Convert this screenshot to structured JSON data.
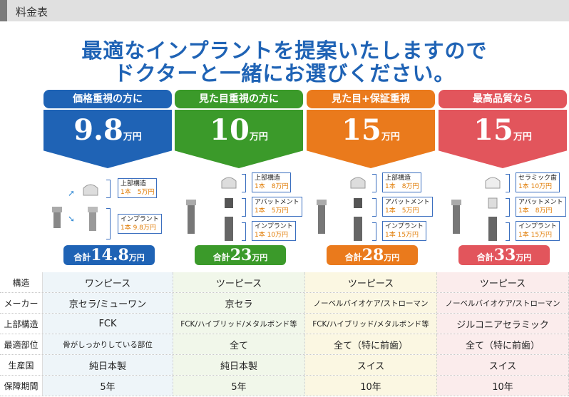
{
  "header": {
    "title": "料金表"
  },
  "headline": {
    "line1": "最適なインプラントを提案いたしますので",
    "line2": "ドクターと一緒にお選びください。"
  },
  "plans": [
    {
      "tag": "価格重視の方に",
      "price": "9.8",
      "unit": "万円",
      "total_label": "合計",
      "total": "14.8",
      "total_unit": "万円",
      "color": "#1f63b5",
      "parts": [
        {
          "name": "上部構造",
          "price": "1本　5万円"
        },
        {
          "name": "インプラント",
          "price": "1本 9.8万円"
        }
      ]
    },
    {
      "tag": "見た目重視の方に",
      "price": "10",
      "unit": "万円",
      "total_label": "合計",
      "total": "23",
      "total_unit": "万円",
      "color": "#3b9a2a",
      "parts": [
        {
          "name": "上部構造",
          "price": "1本　8万円"
        },
        {
          "name": "アバットメント",
          "price": "1本　5万円"
        },
        {
          "name": "インプラント",
          "price": "1本 10万円"
        }
      ]
    },
    {
      "tag": "見た目+保証重視",
      "price": "15",
      "unit": "万円",
      "total_label": "合計",
      "total": "28",
      "total_unit": "万円",
      "color": "#ea7a1c",
      "parts": [
        {
          "name": "上部構造",
          "price": "1本　8万円"
        },
        {
          "name": "アバットメント",
          "price": "1本　5万円"
        },
        {
          "name": "インプラント",
          "price": "1本 15万円"
        }
      ]
    },
    {
      "tag": "最高品質なら",
      "price": "15",
      "unit": "万円",
      "total_label": "合計",
      "total": "33",
      "total_unit": "万円",
      "color": "#e2555c",
      "parts": [
        {
          "name": "セラミック歯",
          "price": "1本 10万円"
        },
        {
          "name": "アバットメント",
          "price": "1本　8万円"
        },
        {
          "name": "インプラント",
          "price": "1本 15万円"
        }
      ]
    }
  ],
  "table": {
    "rows": [
      {
        "key": "構造",
        "values": [
          "ワンピース",
          "ツーピース",
          "ツーピース",
          "ツーピース"
        ]
      },
      {
        "key": "メーカー",
        "values": [
          "京セラ/ミューワン",
          "京セラ",
          "ノーベルバイオケア/ストローマン",
          "ノーベルバイオケア/ストローマン"
        ]
      },
      {
        "key": "上部構造",
        "values": [
          "FCK",
          "FCK/ハイブリッド/メタルボンド等",
          "FCK/ハイブリッド/メタルボンド等",
          "ジルコニアセラミック"
        ]
      },
      {
        "key": "最適部位",
        "values": [
          "骨がしっかりしている部位",
          "全て",
          "全て（特に前歯）",
          "全て（特に前歯）"
        ]
      },
      {
        "key": "生産国",
        "values": [
          "純日本製",
          "純日本製",
          "スイス",
          "スイス"
        ]
      },
      {
        "key": "保障期間",
        "values": [
          "5年",
          "5年",
          "10年",
          "10年"
        ]
      }
    ]
  }
}
